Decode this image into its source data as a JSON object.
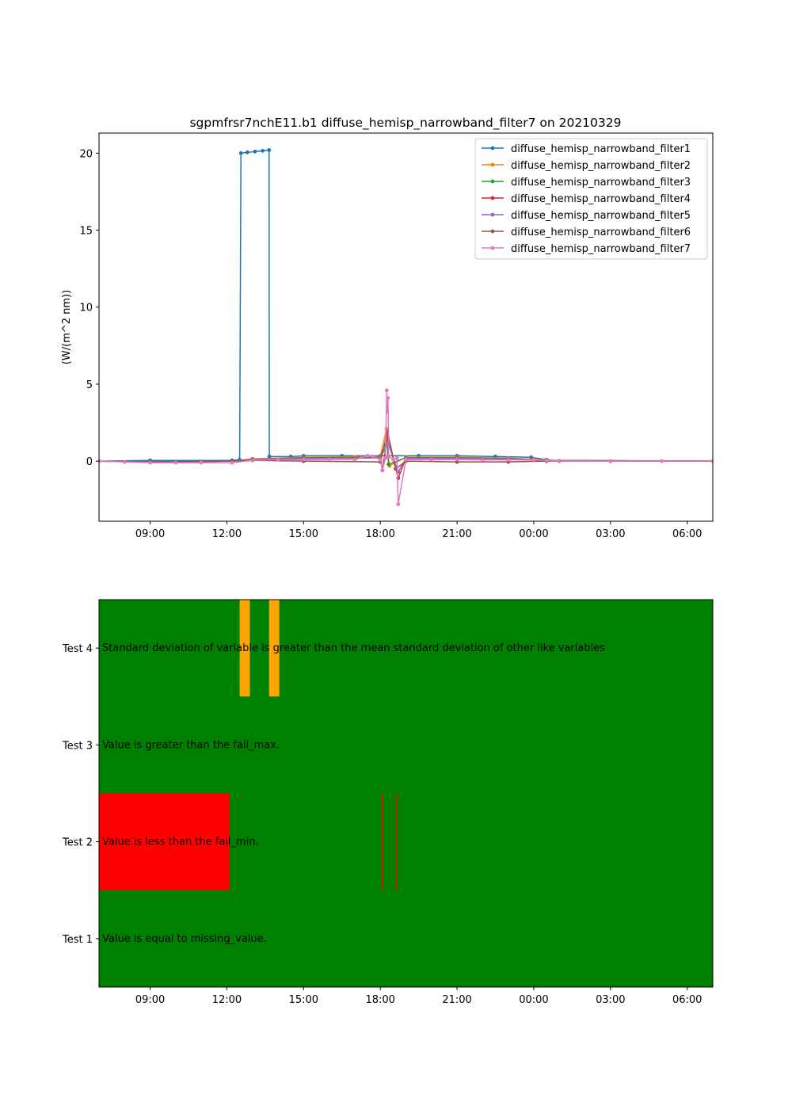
{
  "chart_data": [
    {
      "type": "line",
      "title": "sgpmfrsr7nchE11.b1 diffuse_hemisp_narrowband_filter7 on 20210329",
      "xlabel": "",
      "ylabel": "(W/(m^2 nm))",
      "x_unit": "hours since 2021-03-29 00:00",
      "xlim": [
        7.0,
        31.0
      ],
      "ylim": [
        -3.9,
        21.3
      ],
      "x_ticks": [
        9,
        12,
        15,
        18,
        21,
        24,
        27,
        30
      ],
      "x_tick_labels": [
        "09:00",
        "12:00",
        "15:00",
        "18:00",
        "21:00",
        "00:00",
        "03:00",
        "06:00"
      ],
      "y_ticks": [
        0,
        5,
        10,
        15,
        20
      ],
      "y_tick_labels": [
        "0",
        "5",
        "10",
        "15",
        "20"
      ],
      "grid": false,
      "legend_position": "top-right",
      "series": [
        {
          "name": "diffuse_hemisp_narrowband_filter1",
          "color": "#1f77b4",
          "x": [
            7.0,
            9.0,
            12.2,
            12.5,
            12.55,
            12.8,
            13.1,
            13.4,
            13.65,
            13.66,
            14.5,
            15.0,
            16.5,
            18.0,
            19.5,
            21.0,
            22.5,
            23.9,
            24.5,
            25.0,
            27.0,
            31.0
          ],
          "y": [
            0.0,
            0.05,
            0.05,
            0.1,
            20.0,
            20.05,
            20.1,
            20.15,
            20.2,
            0.3,
            0.3,
            0.35,
            0.35,
            0.35,
            0.35,
            0.35,
            0.3,
            0.25,
            0.1,
            0.0,
            0.0,
            0.0
          ]
        },
        {
          "name": "diffuse_hemisp_narrowband_filter2",
          "color": "#ff7f0e",
          "x": [
            7.0,
            9.0,
            12.2,
            13.0,
            15.0,
            17.0,
            18.0,
            18.24,
            18.3,
            18.36,
            19.0,
            21.0,
            23.0,
            24.0,
            25.0,
            31.0
          ],
          "y": [
            0.0,
            -0.05,
            0.0,
            0.15,
            0.25,
            0.28,
            0.3,
            2.1,
            0.3,
            -0.3,
            0.25,
            0.25,
            0.2,
            0.12,
            0.02,
            0.0
          ]
        },
        {
          "name": "diffuse_hemisp_narrowband_filter3",
          "color": "#2ca02c",
          "x": [
            7.0,
            9.0,
            12.2,
            13.0,
            15.0,
            18.0,
            18.26,
            18.32,
            19.0,
            21.0,
            23.0,
            24.5,
            31.0
          ],
          "y": [
            0.0,
            -0.05,
            0.0,
            0.12,
            0.22,
            0.25,
            1.4,
            -0.2,
            0.22,
            0.22,
            0.17,
            0.05,
            0.0
          ]
        },
        {
          "name": "diffuse_hemisp_narrowband_filter4",
          "color": "#d62728",
          "x": [
            7.0,
            9.0,
            12.2,
            13.0,
            15.0,
            18.0,
            18.08,
            18.28,
            18.7,
            19.0,
            21.0,
            23.0,
            24.5,
            31.0
          ],
          "y": [
            0.0,
            -0.05,
            0.0,
            0.1,
            0.2,
            0.22,
            -0.6,
            1.6,
            -1.1,
            0.2,
            0.2,
            0.15,
            0.05,
            0.0
          ]
        },
        {
          "name": "diffuse_hemisp_narrowband_filter5",
          "color": "#9467bd",
          "x": [
            7.0,
            9.0,
            12.2,
            13.0,
            15.0,
            18.0,
            18.3,
            18.7,
            19.0,
            21.0,
            23.0,
            24.5,
            31.0
          ],
          "y": [
            0.0,
            -0.05,
            0.0,
            0.1,
            0.18,
            0.2,
            1.2,
            -0.7,
            0.18,
            0.18,
            0.14,
            0.04,
            0.0
          ]
        },
        {
          "name": "diffuse_hemisp_narrowband_filter6",
          "color": "#8c564b",
          "x": [
            7.0,
            9.0,
            12.2,
            13.0,
            15.0,
            18.0,
            18.28,
            18.6,
            19.0,
            21.0,
            23.0,
            24.5,
            31.0
          ],
          "y": [
            0.0,
            -0.05,
            0.0,
            0.05,
            0.0,
            -0.05,
            1.9,
            -0.5,
            0.0,
            -0.05,
            -0.05,
            0.0,
            0.0
          ]
        },
        {
          "name": "diffuse_hemisp_narrowband_filter7",
          "color": "#e377c2",
          "x": [
            7.0,
            8.0,
            9.0,
            10.0,
            11.0,
            12.2,
            13.0,
            14.0,
            15.0,
            16.0,
            17.0,
            17.5,
            17.7,
            18.0,
            18.08,
            18.2,
            18.25,
            18.27,
            18.3,
            18.33,
            18.5,
            18.65,
            18.7,
            19.0,
            20.0,
            21.0,
            22.0,
            23.0,
            24.0,
            24.5,
            25.0,
            27.0,
            29.0,
            31.0
          ],
          "y": [
            0.0,
            -0.05,
            -0.1,
            -0.1,
            -0.1,
            -0.1,
            0.05,
            0.1,
            0.1,
            0.1,
            0.1,
            0.35,
            0.3,
            0.1,
            -0.6,
            0.2,
            4.6,
            3.2,
            4.1,
            0.3,
            0.1,
            0.2,
            -2.8,
            0.1,
            0.1,
            0.1,
            0.08,
            0.08,
            0.08,
            0.05,
            0.0,
            0.0,
            0.0,
            0.0
          ]
        }
      ]
    },
    {
      "type": "heatmap",
      "title": "",
      "x_unit": "hours since 2021-03-29 00:00",
      "xlim": [
        7.0,
        31.0
      ],
      "x_ticks": [
        9,
        12,
        15,
        18,
        21,
        24,
        27,
        30
      ],
      "x_tick_labels": [
        "09:00",
        "12:00",
        "15:00",
        "18:00",
        "21:00",
        "00:00",
        "03:00",
        "06:00"
      ],
      "background_color": "#008000",
      "rows": [
        {
          "tick": "Test 4",
          "description": "Standard deviation of variable is greater than the mean standard deviation of other like variables",
          "flags": [
            {
              "start": 12.5,
              "end": 12.9,
              "color": "#ffa500"
            },
            {
              "start": 13.65,
              "end": 14.05,
              "color": "#ffa500"
            }
          ]
        },
        {
          "tick": "Test 3",
          "description": "Value is greater than the fail_max.",
          "flags": []
        },
        {
          "tick": "Test 2",
          "description": "Value is less than the fail_min.",
          "flags": [
            {
              "start": 7.0,
              "end": 12.1,
              "color": "#ff0000"
            },
            {
              "start": 18.05,
              "end": 18.09,
              "color": "#ff0000"
            },
            {
              "start": 18.6,
              "end": 18.64,
              "color": "#ff0000"
            }
          ]
        },
        {
          "tick": "Test 1",
          "description": "Value is equal to missing_value.",
          "flags": []
        }
      ]
    }
  ]
}
